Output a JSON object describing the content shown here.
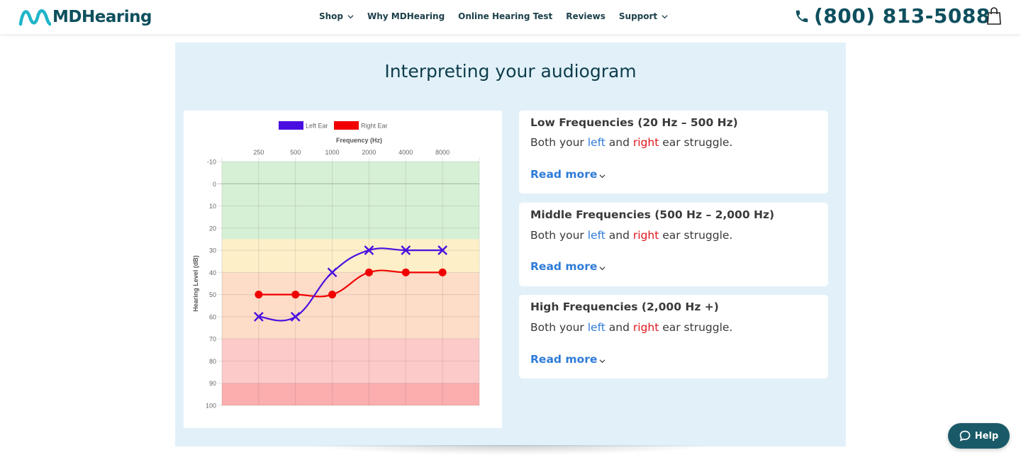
{
  "header": {
    "logo_text": "MDHearing",
    "nav": [
      {
        "label": "Shop",
        "has_dropdown": true
      },
      {
        "label": "Why MDHearing",
        "has_dropdown": false
      },
      {
        "label": "Online Hearing Test",
        "has_dropdown": false
      },
      {
        "label": "Reviews",
        "has_dropdown": false
      },
      {
        "label": "Support",
        "has_dropdown": true
      }
    ],
    "phone": "(800) 813-5088",
    "icons": {
      "phone": "phone-icon",
      "cart": "shopping-bag-icon"
    }
  },
  "section": {
    "title": "Interpreting your audiogram"
  },
  "chart_data": {
    "type": "line",
    "title": "",
    "xlabel": "Frequency (Hz)",
    "ylabel": "Hearing Level (dB)",
    "x_position": "top",
    "categories": [
      "250",
      "500",
      "1000",
      "2000",
      "4000",
      "8000"
    ],
    "y_ticks": [
      "-10",
      "0",
      "10",
      "20",
      "30",
      "40",
      "50",
      "60",
      "70",
      "80",
      "90",
      "100"
    ],
    "ylim": [
      -10,
      100
    ],
    "y_reversed": true,
    "legend_position": "top",
    "bands": [
      {
        "from": -10,
        "to": 25,
        "color": "#d6f0d6"
      },
      {
        "from": 25,
        "to": 40,
        "color": "#fdefc8"
      },
      {
        "from": 40,
        "to": 70,
        "color": "#fddcc8"
      },
      {
        "from": 70,
        "to": 90,
        "color": "#fdcaca"
      },
      {
        "from": 90,
        "to": 100,
        "color": "#fcaeae"
      }
    ],
    "series": [
      {
        "name": "Left Ear",
        "color": "#4a0fe0",
        "marker": "x",
        "values": [
          60,
          60,
          40,
          30,
          30,
          30
        ]
      },
      {
        "name": "Right Ear",
        "color": "#f00000",
        "marker": "circle",
        "values": [
          50,
          50,
          50,
          40,
          40,
          40
        ]
      }
    ]
  },
  "cards": [
    {
      "title": "Low Frequencies (20 Hz – 500 Hz)",
      "text_prefix": "Both your ",
      "left_word": "left",
      "middle": " and ",
      "right_word": "right",
      "text_suffix": " ear struggle.",
      "read_more": "Read more"
    },
    {
      "title": "Middle Frequencies (500 Hz – 2,000 Hz)",
      "text_prefix": "Both your ",
      "left_word": "left",
      "middle": " and ",
      "right_word": "right",
      "text_suffix": " ear struggle.",
      "read_more": "Read more"
    },
    {
      "title": "High Frequencies (2,000 Hz +)",
      "text_prefix": "Both your ",
      "left_word": "left",
      "middle": " and ",
      "right_word": "right",
      "text_suffix": " ear struggle.",
      "read_more": "Read more"
    }
  ],
  "help": {
    "label": "Help",
    "icon": "chat-bubble-icon"
  },
  "colors": {
    "brand": "#0e4f5e",
    "accent_blue": "#2f7bd8",
    "accent_red": "#e0151c",
    "section_bg": "#e2f1f9"
  }
}
